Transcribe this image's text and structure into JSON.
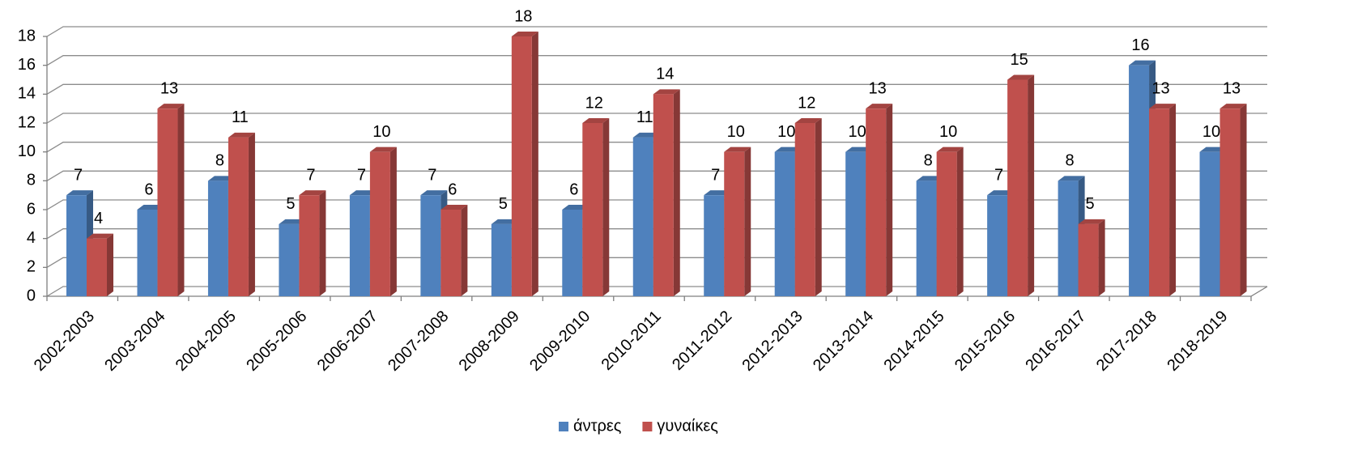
{
  "chart_data": {
    "type": "bar3d",
    "categories": [
      "2002-2003",
      "2003-2004",
      "2004-2005",
      "2005-2006",
      "2006-2007",
      "2007-2008",
      "2008-2009",
      "2009-2010",
      "2010-2011",
      "2011-2012",
      "2012-2013",
      "2013-2014",
      "2014-2015",
      "2015-2016",
      "2016-2017",
      "2017-2018",
      "2018-2019"
    ],
    "series": [
      {
        "name": "άντρες",
        "color": "#4f81bd",
        "values": [
          7,
          6,
          8,
          5,
          7,
          7,
          5,
          6,
          11,
          7,
          10,
          10,
          8,
          7,
          8,
          16,
          10
        ]
      },
      {
        "name": "γυναίκες",
        "color": "#c0504d",
        "values": [
          4,
          13,
          11,
          7,
          10,
          6,
          18,
          12,
          14,
          10,
          12,
          13,
          10,
          15,
          5,
          13,
          13
        ]
      }
    ],
    "ylim": [
      0,
      18
    ],
    "yticks": [
      0,
      2,
      4,
      6,
      8,
      10,
      12,
      14,
      16,
      18
    ],
    "grid": true,
    "legend": "bottom"
  }
}
